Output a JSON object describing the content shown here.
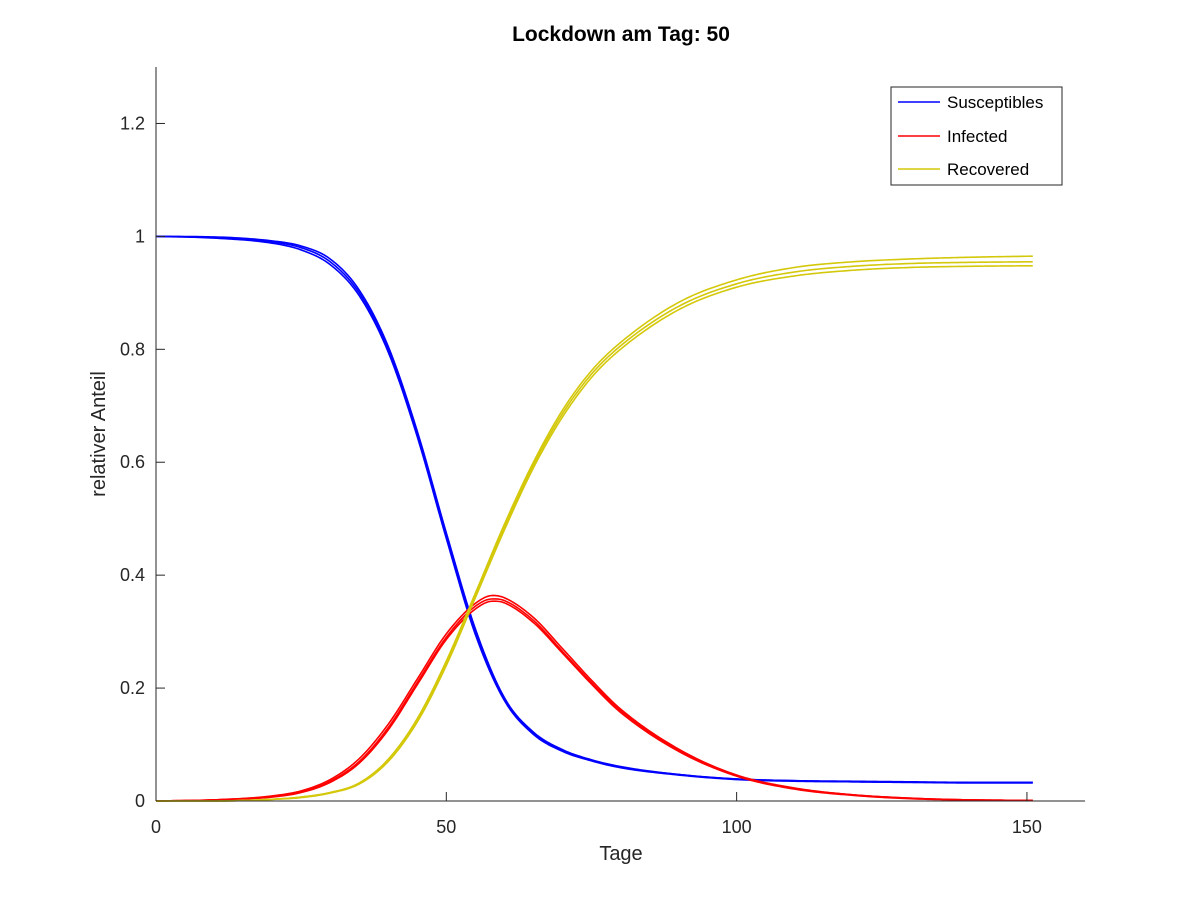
{
  "chart_data": {
    "type": "line",
    "title": "Lockdown am Tag: 50",
    "xlabel": "Tage",
    "ylabel": "relativer Anteil",
    "xlim": [
      0,
      160
    ],
    "ylim": [
      0,
      1.3
    ],
    "xticks": [
      0,
      50,
      100,
      150
    ],
    "yticks": [
      0,
      0.2,
      0.4,
      0.6,
      0.8,
      1,
      1.2
    ],
    "xtick_labels": [
      "0",
      "50",
      "100",
      "150"
    ],
    "ytick_labels": [
      "0",
      "0.2",
      "0.4",
      "0.6",
      "0.8",
      "1",
      "1.2"
    ],
    "grid": false,
    "legend_position": "top-right",
    "legend": [
      "Susceptibles",
      "Infected",
      "Recovered"
    ],
    "series": [
      {
        "name": "Susceptibles",
        "color": "#0000ff",
        "x": [
          0,
          10,
          20,
          25,
          30,
          35,
          40,
          45,
          50,
          55,
          60,
          65,
          70,
          75,
          80,
          90,
          100,
          110,
          120,
          130,
          140,
          151
        ],
        "runs": [
          [
            1.0,
            0.998,
            0.99,
            0.98,
            0.955,
            0.9,
            0.8,
            0.65,
            0.47,
            0.3,
            0.18,
            0.12,
            0.09,
            0.072,
            0.06,
            0.047,
            0.039,
            0.036,
            0.034,
            0.033,
            0.032,
            0.032
          ],
          [
            1.0,
            0.997,
            0.988,
            0.976,
            0.95,
            0.895,
            0.795,
            0.645,
            0.465,
            0.295,
            0.178,
            0.118,
            0.088,
            0.071,
            0.059,
            0.046,
            0.038,
            0.035,
            0.034,
            0.033,
            0.033,
            0.033
          ],
          [
            1.0,
            0.999,
            0.992,
            0.983,
            0.96,
            0.905,
            0.805,
            0.655,
            0.475,
            0.305,
            0.183,
            0.122,
            0.091,
            0.073,
            0.061,
            0.047,
            0.039,
            0.036,
            0.035,
            0.034,
            0.033,
            0.033
          ]
        ]
      },
      {
        "name": "Infected",
        "color": "#ff0000",
        "x": [
          0,
          10,
          20,
          25,
          30,
          35,
          40,
          45,
          50,
          55,
          58,
          60,
          65,
          70,
          75,
          80,
          90,
          100,
          110,
          120,
          130,
          140,
          151
        ],
        "runs": [
          [
            0.0,
            0.002,
            0.008,
            0.016,
            0.035,
            0.07,
            0.13,
            0.21,
            0.29,
            0.345,
            0.358,
            0.355,
            0.32,
            0.265,
            0.21,
            0.16,
            0.09,
            0.045,
            0.022,
            0.011,
            0.005,
            0.002,
            0.001
          ],
          [
            0.0,
            0.002,
            0.009,
            0.018,
            0.038,
            0.075,
            0.136,
            0.216,
            0.296,
            0.35,
            0.364,
            0.36,
            0.325,
            0.27,
            0.214,
            0.163,
            0.092,
            0.046,
            0.023,
            0.011,
            0.005,
            0.002,
            0.001
          ],
          [
            0.0,
            0.002,
            0.007,
            0.015,
            0.033,
            0.067,
            0.126,
            0.206,
            0.286,
            0.34,
            0.354,
            0.351,
            0.316,
            0.262,
            0.207,
            0.157,
            0.088,
            0.044,
            0.021,
            0.01,
            0.004,
            0.002,
            0.001
          ]
        ]
      },
      {
        "name": "Recovered",
        "color": "#d4c80a",
        "x": [
          0,
          10,
          20,
          25,
          30,
          35,
          40,
          45,
          50,
          55,
          60,
          65,
          70,
          75,
          80,
          90,
          100,
          110,
          120,
          130,
          140,
          151
        ],
        "runs": [
          [
            0.0,
            0.0,
            0.003,
            0.006,
            0.014,
            0.03,
            0.07,
            0.14,
            0.24,
            0.36,
            0.48,
            0.59,
            0.68,
            0.75,
            0.8,
            0.87,
            0.91,
            0.93,
            0.94,
            0.945,
            0.947,
            0.948
          ],
          [
            0.0,
            0.0,
            0.003,
            0.007,
            0.015,
            0.031,
            0.072,
            0.143,
            0.244,
            0.364,
            0.485,
            0.595,
            0.686,
            0.756,
            0.806,
            0.876,
            0.916,
            0.937,
            0.947,
            0.952,
            0.954,
            0.955
          ],
          [
            0.0,
            0.0,
            0.003,
            0.007,
            0.015,
            0.032,
            0.074,
            0.146,
            0.248,
            0.368,
            0.49,
            0.6,
            0.692,
            0.762,
            0.812,
            0.883,
            0.923,
            0.945,
            0.955,
            0.96,
            0.963,
            0.965
          ]
        ]
      }
    ]
  }
}
